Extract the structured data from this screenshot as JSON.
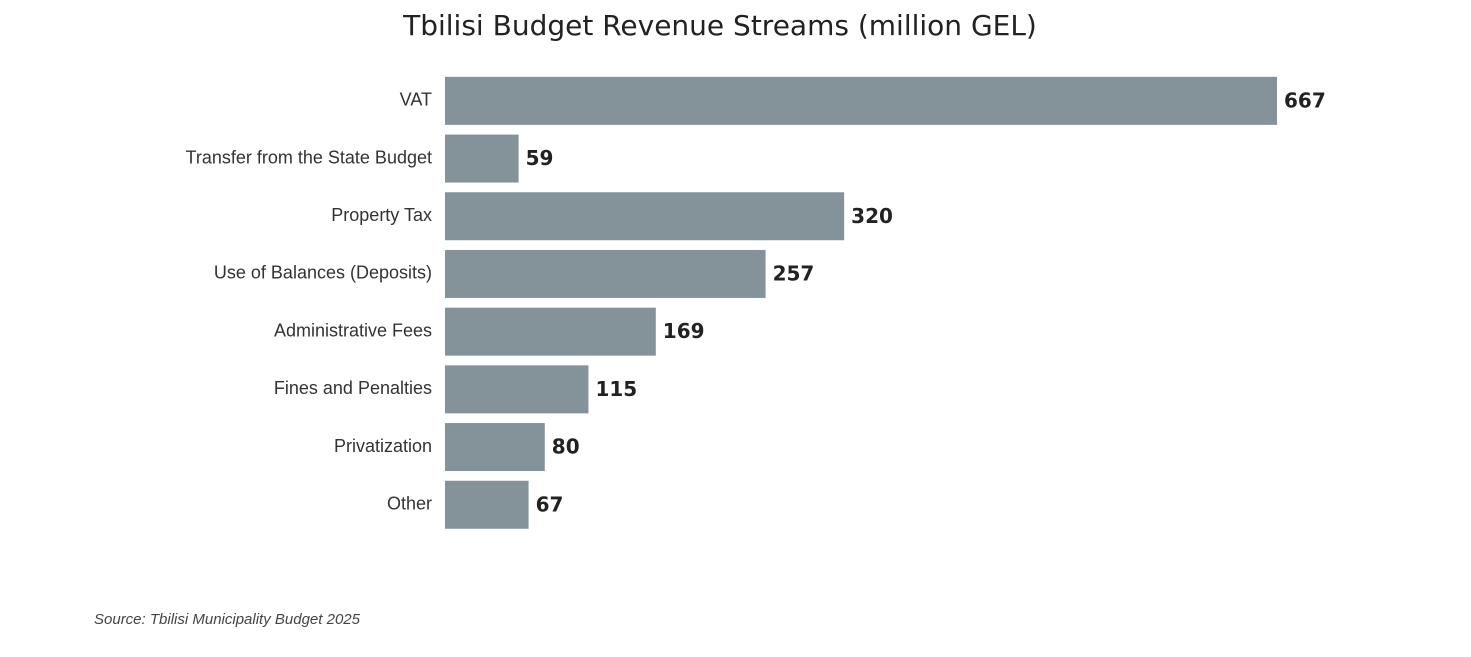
{
  "chart_data": {
    "type": "hbar",
    "title": "Tbilisi Budget Revenue Streams (million GEL)",
    "categories": [
      "VAT",
      "Transfer from the State Budget",
      "Property Tax",
      "Use of Balances (Deposits)",
      "Administrative Fees",
      "Fines and Penalties",
      "Privatization",
      "Other"
    ],
    "values": [
      667,
      59,
      320,
      257,
      169,
      115,
      80,
      67
    ],
    "color": "#84939a",
    "source": "Source: Tbilisi Municipality Budget 2025"
  }
}
